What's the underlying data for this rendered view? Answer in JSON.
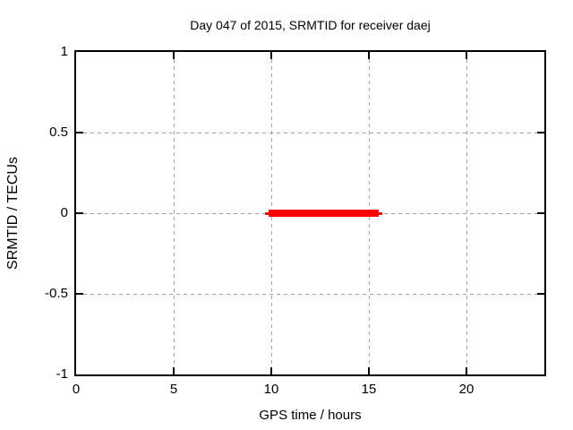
{
  "chart_data": {
    "type": "line",
    "title": "Day 047 of 2015, SRMTID for receiver daej",
    "xlabel": "GPS time / hours",
    "ylabel": "SRMTID / TECUs",
    "xlim": [
      0,
      24
    ],
    "ylim": [
      -1,
      1
    ],
    "x_ticks": [
      {
        "value": 0,
        "label": "0"
      },
      {
        "value": 5,
        "label": "5"
      },
      {
        "value": 10,
        "label": "10"
      },
      {
        "value": 15,
        "label": "15"
      },
      {
        "value": 20,
        "label": "20"
      }
    ],
    "y_ticks": [
      {
        "value": 1,
        "label": "1"
      },
      {
        "value": 0.5,
        "label": "0.5"
      },
      {
        "value": 0,
        "label": "0"
      },
      {
        "value": -0.5,
        "label": "-0.5"
      },
      {
        "value": -1,
        "label": "-1"
      }
    ],
    "grid": true,
    "legend": "none",
    "colors": {
      "series": "#ff0000",
      "grid": "#a0a0a0",
      "border": "#000000",
      "background": "#ffffff",
      "text": "#000000"
    },
    "series": [
      {
        "name": "SRMTID",
        "style": "thick horizontal segment at constant value",
        "y": 0,
        "x_start": 9.7,
        "x_end": 15.7,
        "core_x_start": 9.85,
        "core_x_end": 15.5,
        "color": "#ff0000"
      }
    ]
  }
}
